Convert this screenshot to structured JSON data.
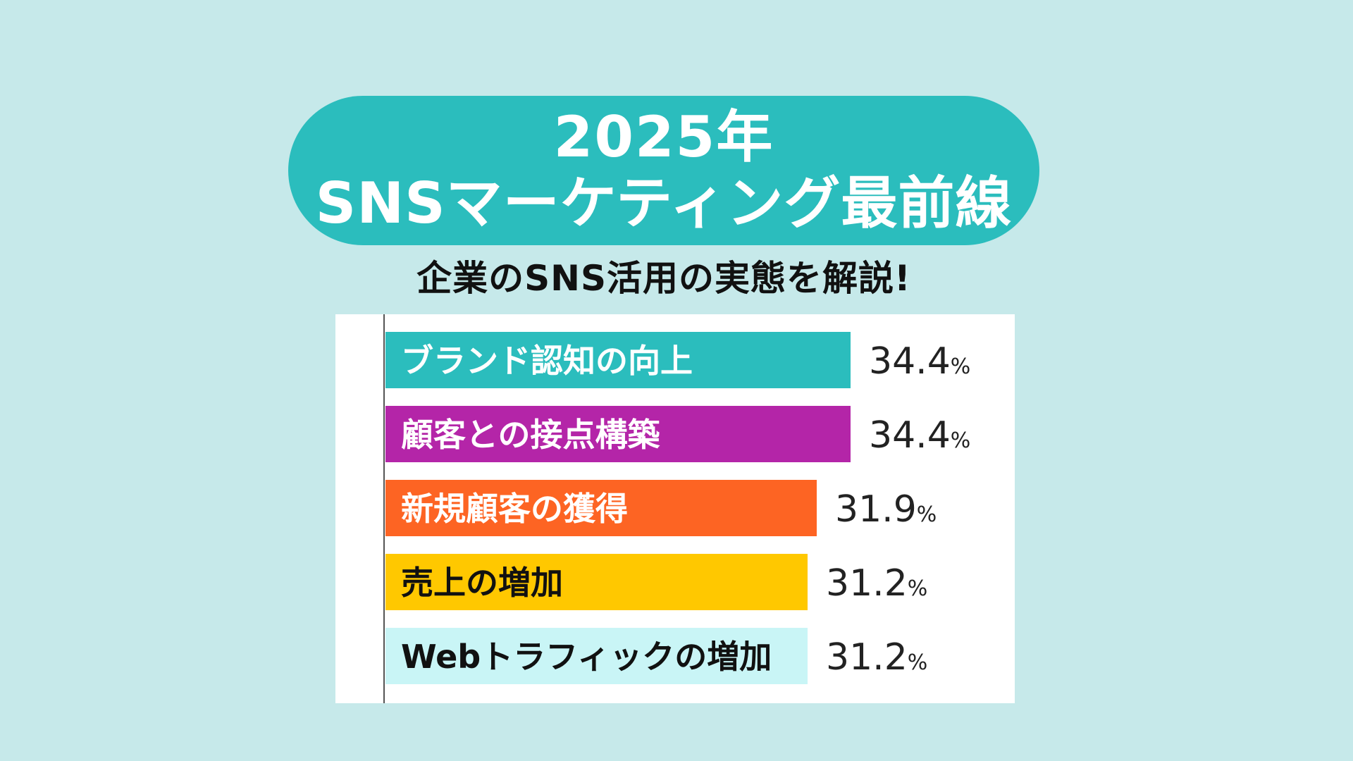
{
  "header": {
    "title_line1": "2025年",
    "title_line2": "SNSマーケティング最前線",
    "subtitle": "企業のSNS活用の実態を解説!"
  },
  "colors": {
    "background": "#c6e9ea",
    "title_pill": "#2bbdbd"
  },
  "chart_data": {
    "type": "bar",
    "orientation": "horizontal",
    "categories": [
      "ブランド認知の向上",
      "顧客との接点構築",
      "新規顧客の獲得",
      "売上の増加",
      "Webトラフィックの増加"
    ],
    "values": [
      34.4,
      34.4,
      31.9,
      31.2,
      31.2
    ],
    "value_labels": [
      "34.4",
      "34.4",
      "31.9",
      "31.2",
      "31.2"
    ],
    "unit": "%",
    "bar_colors": [
      "#2bbdbd",
      "#b425a8",
      "#fd6423",
      "#ffc800",
      "#c9f5f6"
    ],
    "label_colors": [
      "#ffffff",
      "#ffffff",
      "#ffffff",
      "#111111",
      "#111111"
    ],
    "xlim": [
      0,
      34.4
    ],
    "grid": false,
    "legend": "none"
  }
}
